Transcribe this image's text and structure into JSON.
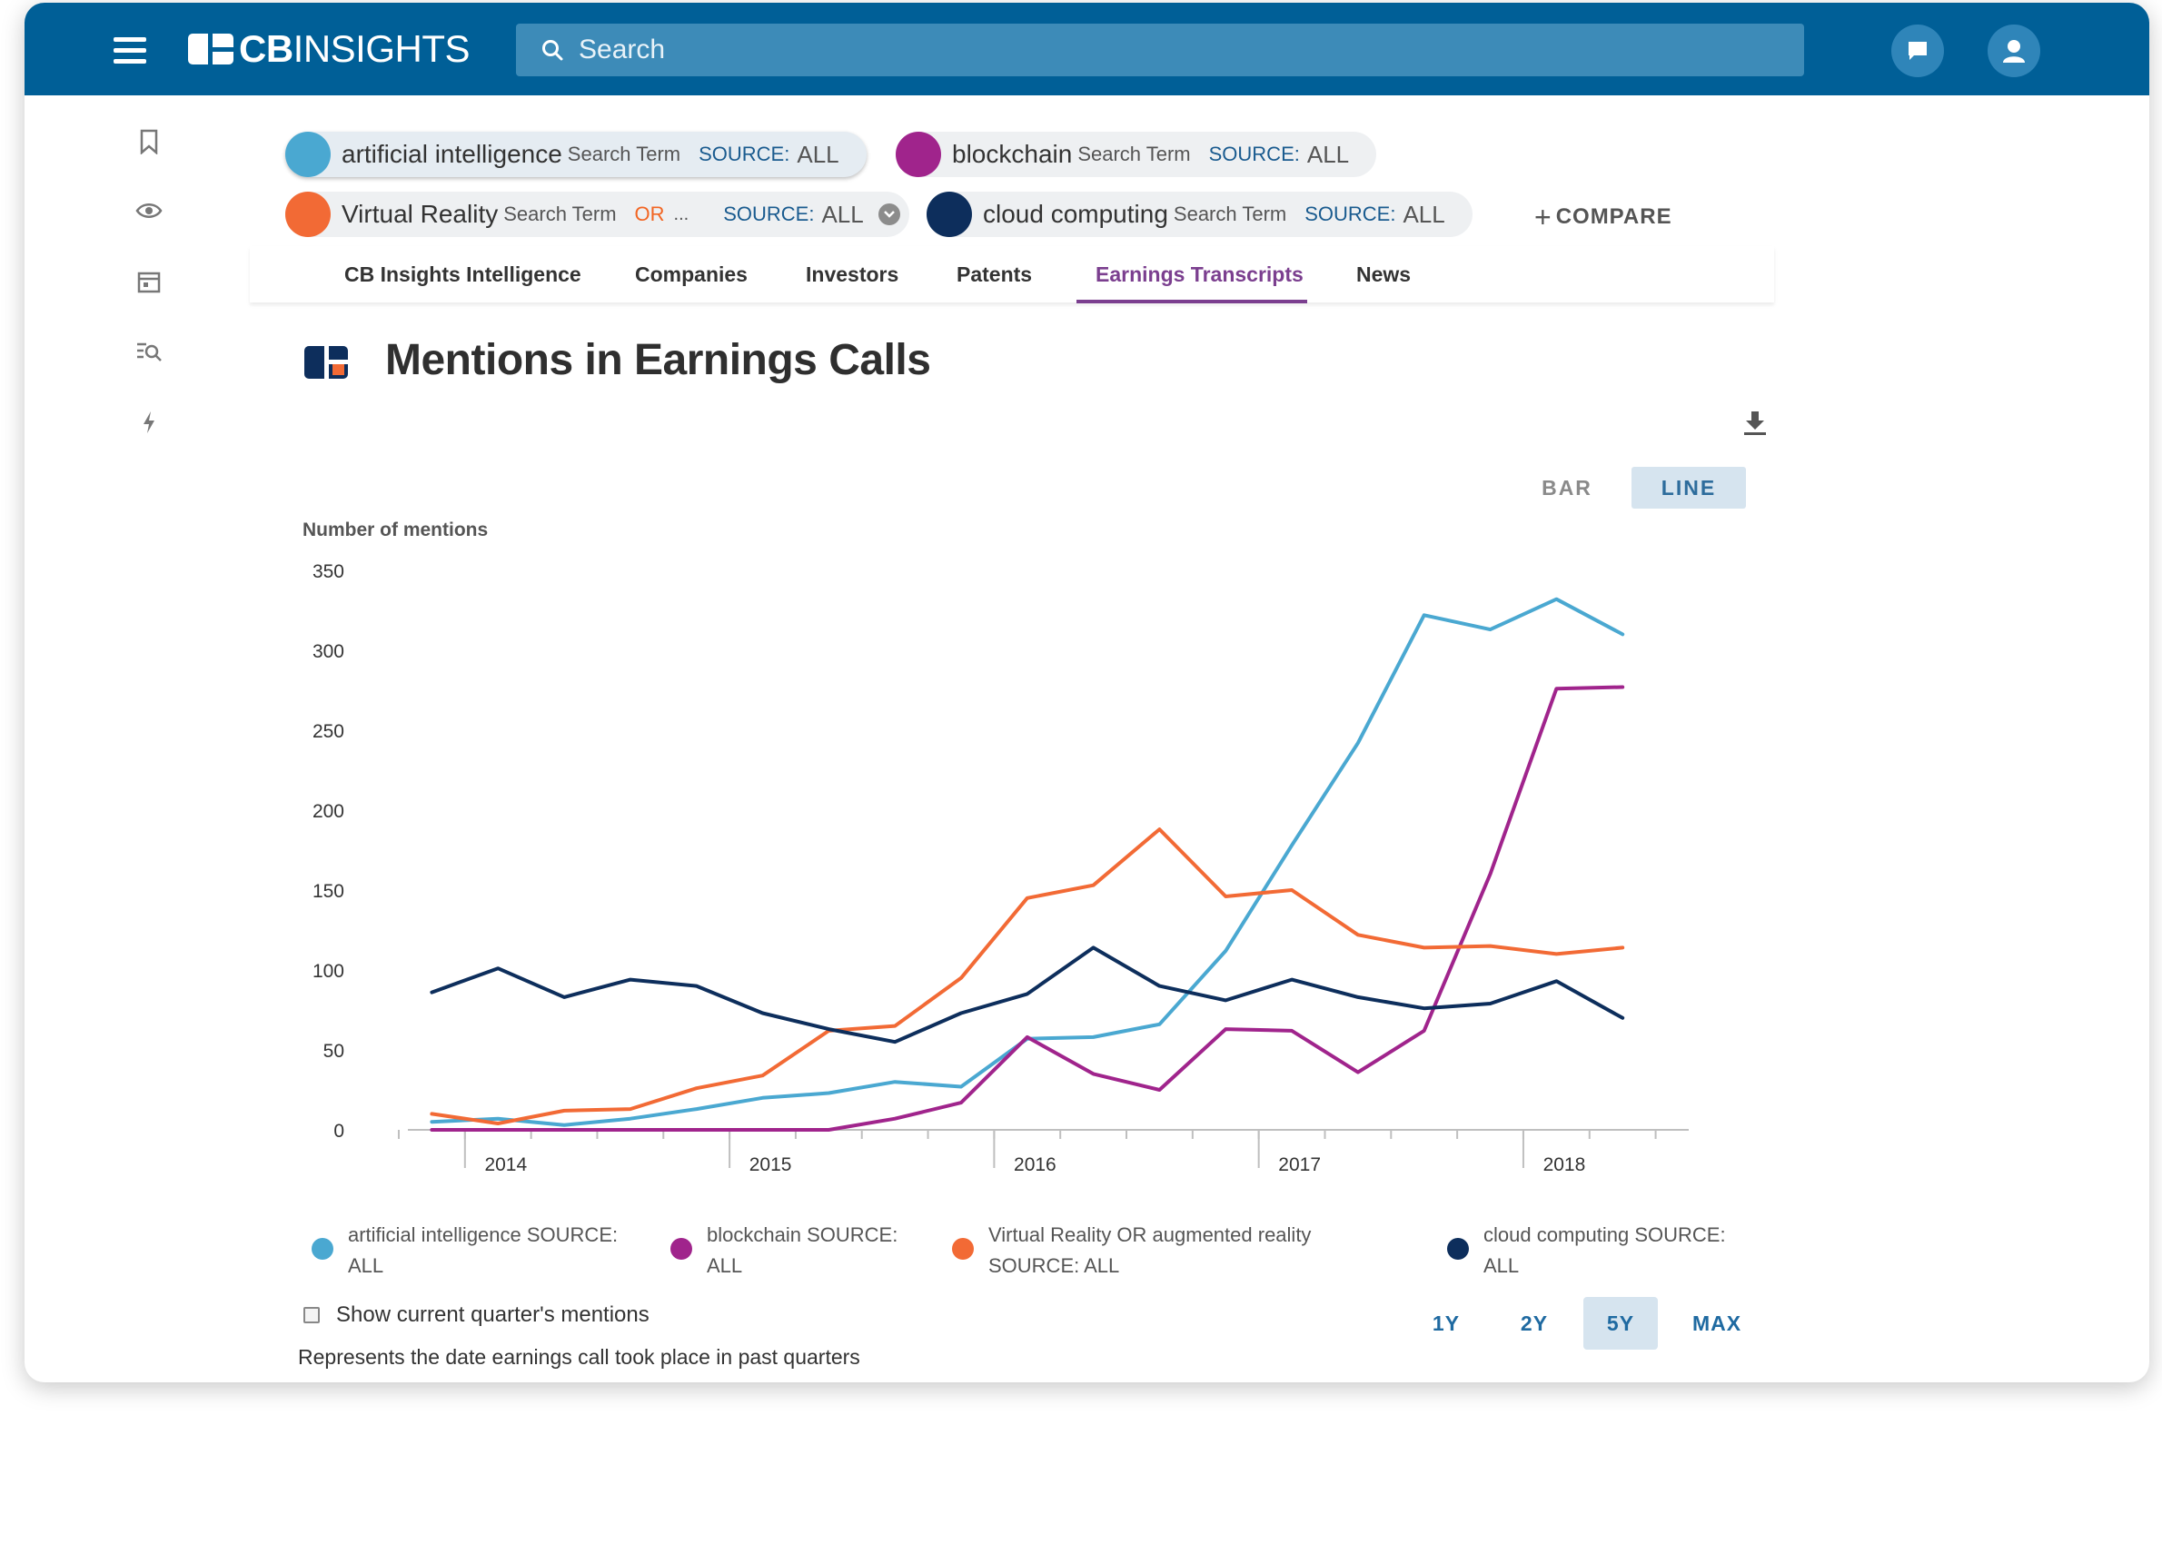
{
  "header": {
    "logo_bold": "CB",
    "logo_rest": "INSIGHTS",
    "search_placeholder": "Search",
    "chat_icon": "chat-icon",
    "profile_icon": "user-icon"
  },
  "rail": [
    "bookmark-icon",
    "eye-icon",
    "calendar-icon",
    "search-list-icon",
    "lightning-icon"
  ],
  "chips": [
    {
      "term": "artificial intelligence",
      "kind": "Search Term",
      "source_label": "SOURCE:",
      "source_value": "ALL",
      "color": "#4aa8d1"
    },
    {
      "term": "blockchain",
      "kind": "Search Term",
      "source_label": "SOURCE:",
      "source_value": "ALL",
      "color": "#a0248c"
    },
    {
      "term": "Virtual Reality",
      "kind": "Search Term",
      "or": "OR",
      "ellipsis": "...",
      "source_label": "SOURCE:",
      "source_value": "ALL",
      "color": "#f26a35"
    },
    {
      "term": "cloud computing",
      "kind": "Search Term",
      "source_label": "SOURCE:",
      "source_value": "ALL",
      "color": "#0d2e5c"
    }
  ],
  "compare_label": "COMPARE",
  "tabs": [
    "CB Insights Intelligence",
    "Companies",
    "Investors",
    "Patents",
    "Earnings Transcripts",
    "News"
  ],
  "active_tab": "Earnings Transcripts",
  "section_title": "Mentions in Earnings Calls",
  "view_toggle": {
    "bar": "BAR",
    "line": "LINE",
    "active": "LINE"
  },
  "chart_data": {
    "type": "line",
    "ylabel": "Number of mentions",
    "ylim": [
      0,
      350
    ],
    "yticks": [
      0,
      50,
      100,
      150,
      200,
      250,
      300,
      350
    ],
    "x": [
      2013.75,
      2014.0,
      2014.25,
      2014.5,
      2014.75,
      2015.0,
      2015.25,
      2015.5,
      2015.75,
      2016.0,
      2016.25,
      2016.5,
      2016.75,
      2017.0,
      2017.25,
      2017.5,
      2017.75,
      2018.0,
      2018.25
    ],
    "xticks": [
      2014,
      2015,
      2016,
      2017,
      2018
    ],
    "grid": false,
    "series": [
      {
        "name": "artificial intelligence SOURCE: ALL",
        "color": "#4aa8d1",
        "values": [
          5,
          7,
          3,
          7,
          13,
          20,
          23,
          30,
          27,
          57,
          58,
          66,
          112,
          178,
          242,
          322,
          313,
          332,
          310
        ]
      },
      {
        "name": "blockchain SOURCE: ALL",
        "color": "#a0248c",
        "values": [
          0,
          0,
          0,
          0,
          0,
          0,
          0,
          7,
          17,
          58,
          35,
          25,
          63,
          62,
          36,
          62,
          160,
          276,
          277
        ]
      },
      {
        "name": "Virtual Reality OR augmented reality SOURCE: ALL",
        "color": "#f26a35",
        "values": [
          10,
          4,
          12,
          13,
          26,
          34,
          62,
          65,
          95,
          145,
          153,
          188,
          146,
          150,
          122,
          114,
          115,
          110,
          114
        ]
      },
      {
        "name": "cloud computing SOURCE: ALL",
        "color": "#0d2e5c",
        "values": [
          86,
          101,
          83,
          94,
          90,
          73,
          63,
          55,
          73,
          85,
          114,
          90,
          81,
          94,
          83,
          76,
          79,
          93,
          70
        ]
      }
    ]
  },
  "legend": [
    {
      "line1": "artificial intelligence SOURCE:",
      "line2": "ALL"
    },
    {
      "line1": "blockchain SOURCE:",
      "line2": "ALL"
    },
    {
      "line1": "Virtual Reality OR augmented reality",
      "line2": "SOURCE: ALL"
    },
    {
      "line1": "cloud computing SOURCE:",
      "line2": "ALL"
    }
  ],
  "show_current_quarter_label": "Show current quarter's mentions",
  "note": "Represents the date earnings call took place in past quarters",
  "ranges": [
    "1Y",
    "2Y",
    "5Y",
    "MAX"
  ],
  "active_range": "5Y"
}
